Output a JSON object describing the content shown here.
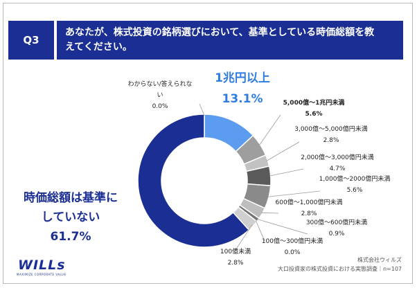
{
  "question": {
    "badge": "Q3",
    "text_line1": "あなたが、株式投資の銘柄選びにおいて、基準としている時価総額を教",
    "text_line2": "えてください。"
  },
  "chart_data": {
    "type": "pie",
    "subtype": "donut",
    "title": "あなたが、株式投資の銘柄選びにおいて、基準としている時価総額を教えてください。",
    "categories": [
      "1兆円以上",
      "5,000億〜1兆円未満",
      "3,000億〜5,000億円未満",
      "2,000億〜3,000億円未満",
      "1,000億〜2000億円未満",
      "600億〜1,000億円未満",
      "300億〜600億円未満",
      "100億〜300億円未満",
      "100億未満",
      "時価総額は基準にしていない",
      "わからない/答えられない"
    ],
    "values": [
      13.1,
      5.6,
      2.8,
      4.7,
      5.6,
      2.8,
      0.9,
      0.0,
      2.8,
      61.7,
      0.0
    ],
    "value_labels": [
      "13.1%",
      "5.6%",
      "2.8%",
      "4.7%",
      "5.6%",
      "2.8%",
      "0.9%",
      "0.0%",
      "2.8%",
      "61.7%",
      "0.0%"
    ],
    "colors": [
      "#5b9bf0",
      "#9e9e9e",
      "#c2c2c2",
      "#5a5a5a",
      "#8a8a8a",
      "#bdbdbd",
      "#757575",
      "#aaaaaa",
      "#cfcfcf",
      "#1a2e93",
      "#dddddd"
    ]
  },
  "labels": {
    "unknown_line1": "わからない/答えられな",
    "unknown_line2": "い",
    "not_based_line1": "時価総額は基準に",
    "not_based_line2": "していない"
  },
  "footer": {
    "company": "株式会社ウィルズ",
    "survey": "大口投資家の株式投資における実態調査｜n=107"
  },
  "logo": {
    "word": "WILLs",
    "tagline": "MAXIMIZE CORPORATE VALUE"
  }
}
